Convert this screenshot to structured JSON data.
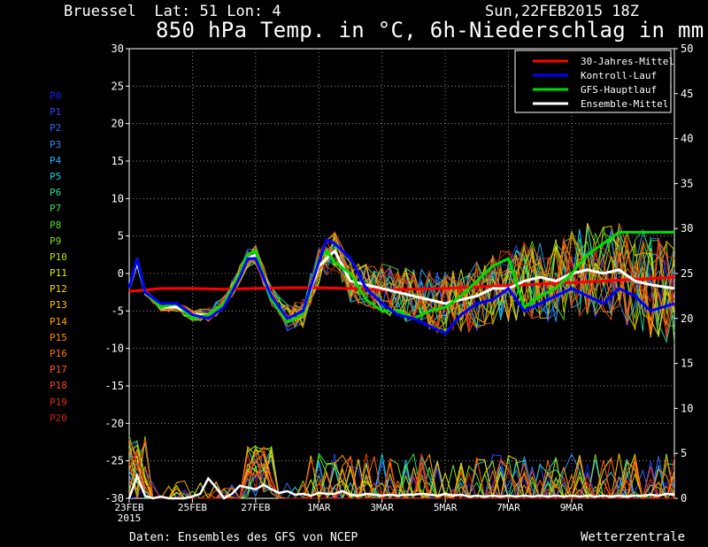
{
  "header": {
    "location": "Bruessel  Lat: 51 Lon: 4",
    "run": "Sun,22FEB2015 18Z",
    "title": "850 hPa Temp. in °C, 6h-Niederschlag in mm"
  },
  "footer": {
    "source": "Daten: Ensembles des GFS von NCEP",
    "brand": "Wetterzentrale"
  },
  "members": [
    {
      "label": "P0",
      "color": "#1a1aff"
    },
    {
      "label": "P1",
      "color": "#2a44ff"
    },
    {
      "label": "P2",
      "color": "#2f66ff"
    },
    {
      "label": "P3",
      "color": "#2f8cff"
    },
    {
      "label": "P4",
      "color": "#22b4ff"
    },
    {
      "label": "P5",
      "color": "#10d4e0"
    },
    {
      "label": "P6",
      "color": "#18e0a0"
    },
    {
      "label": "P7",
      "color": "#30e050"
    },
    {
      "label": "P8",
      "color": "#50e020"
    },
    {
      "label": "P9",
      "color": "#7ee010"
    },
    {
      "label": "P10",
      "color": "#b0e800"
    },
    {
      "label": "P11",
      "color": "#e0ec00"
    },
    {
      "label": "P12",
      "color": "#f8d800"
    },
    {
      "label": "P13",
      "color": "#ffc000"
    },
    {
      "label": "P14",
      "color": "#ffa400"
    },
    {
      "label": "P15",
      "color": "#ff8c00"
    },
    {
      "label": "P16",
      "color": "#ff7410"
    },
    {
      "label": "P17",
      "color": "#ff5c18"
    },
    {
      "label": "P18",
      "color": "#f04418"
    },
    {
      "label": "P19",
      "color": "#e02c18"
    },
    {
      "label": "P20",
      "color": "#cc2010"
    }
  ],
  "chart_data": {
    "type": "line",
    "y_left": {
      "min": -30,
      "max": 30,
      "ticks": [
        30,
        25,
        20,
        15,
        10,
        5,
        0,
        -5,
        -10,
        -15,
        -20,
        -25,
        -30
      ]
    },
    "y_right": {
      "min": 0,
      "max": 50,
      "ticks": [
        50,
        45,
        40,
        35,
        30,
        25,
        20,
        15,
        10,
        5,
        0
      ]
    },
    "x_range_days": [
      0,
      17.25
    ],
    "x_ticks": [
      {
        "day": 0,
        "label": "23FEB"
      },
      {
        "day": 2,
        "label": "25FEB"
      },
      {
        "day": 4,
        "label": "27FEB"
      },
      {
        "day": 6,
        "label": "1MAR"
      },
      {
        "day": 8,
        "label": "3MAR"
      },
      {
        "day": 10,
        "label": "5MAR"
      },
      {
        "day": 12,
        "label": "7MAR"
      },
      {
        "day": 14,
        "label": "9MAR"
      }
    ],
    "x_sublabel": "2015",
    "grid": true,
    "legend": {
      "placement": "top-right",
      "entries": [
        {
          "label": "30-Jahres-Mittel",
          "color": "#ff0000"
        },
        {
          "label": "Kontroll-Lauf",
          "color": "#0000ff"
        },
        {
          "label": "GFS-Hauptlauf",
          "color": "#00dd00"
        },
        {
          "label": "Ensemble-Mittel",
          "color": "#ffffff"
        }
      ]
    },
    "series": [
      {
        "name": "30-Jahres-Mittel",
        "color": "#ff0000",
        "width": 3,
        "x": [
          0,
          0.5,
          1,
          1.5,
          2,
          3,
          4,
          5,
          6,
          7,
          8,
          9,
          10,
          11,
          12,
          13,
          14,
          15,
          16,
          17.25
        ],
        "y": [
          -2.4,
          -2.2,
          -2.0,
          -2.0,
          -2.0,
          -2.1,
          -2.0,
          -1.9,
          -1.9,
          -2.0,
          -2.2,
          -2.1,
          -2.0,
          -1.8,
          -1.6,
          -1.4,
          -1.2,
          -1.0,
          -0.8,
          -0.5
        ]
      },
      {
        "name": "Ensemble-Mittel",
        "color": "#ffffff",
        "width": 3,
        "x": [
          0,
          0.25,
          0.5,
          1,
          1.5,
          2,
          2.5,
          3,
          3.5,
          3.75,
          4,
          4.5,
          5,
          5.5,
          6,
          6.5,
          7,
          7.5,
          8,
          8.5,
          9,
          9.5,
          10,
          10.5,
          11,
          11.5,
          12,
          12.5,
          13,
          13.5,
          14,
          14.5,
          15,
          15.5,
          16,
          16.5,
          17.25
        ],
        "y": [
          -2,
          1.5,
          -2.5,
          -4.5,
          -4.5,
          -5.5,
          -5.5,
          -4,
          0,
          2,
          2.5,
          -3,
          -6,
          -5,
          1,
          3,
          -1,
          -1.5,
          -2,
          -2.5,
          -3,
          -3.5,
          -4,
          -3.5,
          -3,
          -2,
          -2,
          -1,
          -0.5,
          -1,
          0,
          0.5,
          0,
          0.5,
          -1,
          -1.5,
          -2
        ]
      },
      {
        "name": "GFS-Hauptlauf",
        "color": "#00dd00",
        "width": 3,
        "x": [
          0,
          0.25,
          0.5,
          1,
          1.5,
          2,
          2.5,
          3,
          3.5,
          3.75,
          4,
          4.5,
          5,
          5.5,
          6,
          6.25,
          6.5,
          7,
          7.5,
          8,
          8.5,
          9,
          9.5,
          10,
          10.5,
          11,
          11.5,
          12,
          12.5,
          13,
          13.5,
          14,
          14.5,
          15,
          15.5,
          16,
          16.5,
          17.25
        ],
        "y": [
          -2,
          2,
          -2.5,
          -4.5,
          -4,
          -6,
          -5.5,
          -4,
          0,
          2.5,
          3,
          -3.5,
          -6.5,
          -5.5,
          2,
          3,
          1.5,
          0,
          -3.5,
          -5,
          -5,
          -6,
          -5,
          -4.5,
          -3,
          -1,
          1,
          2,
          -4.5,
          -3,
          -2,
          0,
          2.5,
          4,
          5.5,
          5.5,
          5.5,
          5.5
        ]
      },
      {
        "name": "Kontroll-Lauf",
        "color": "#0000ff",
        "width": 3,
        "x": [
          0,
          0.25,
          0.5,
          1,
          1.5,
          2,
          2.5,
          3,
          3.5,
          3.75,
          4,
          4.5,
          5,
          5.5,
          6,
          6.25,
          6.5,
          7,
          7.5,
          8,
          8.5,
          9,
          9.5,
          10,
          10.5,
          11,
          11.5,
          12,
          12.5,
          13,
          13.5,
          14,
          14.5,
          15,
          15.5,
          16,
          16.5,
          17.25
        ],
        "y": [
          -2,
          2,
          -2.5,
          -4,
          -4,
          -5.5,
          -6,
          -4.5,
          -0.5,
          2,
          2,
          -3,
          -6,
          -5,
          1.5,
          4.5,
          4,
          2,
          -2,
          -4,
          -5.5,
          -6,
          -7,
          -8,
          -5.5,
          -4,
          -3.5,
          -2,
          -5,
          -4,
          -3,
          -2,
          -3,
          -4,
          -2,
          -3,
          -5,
          -4
        ]
      }
    ],
    "precip_note": "6h precipitation spikes plotted on right axis (mm) for each ensemble member"
  }
}
